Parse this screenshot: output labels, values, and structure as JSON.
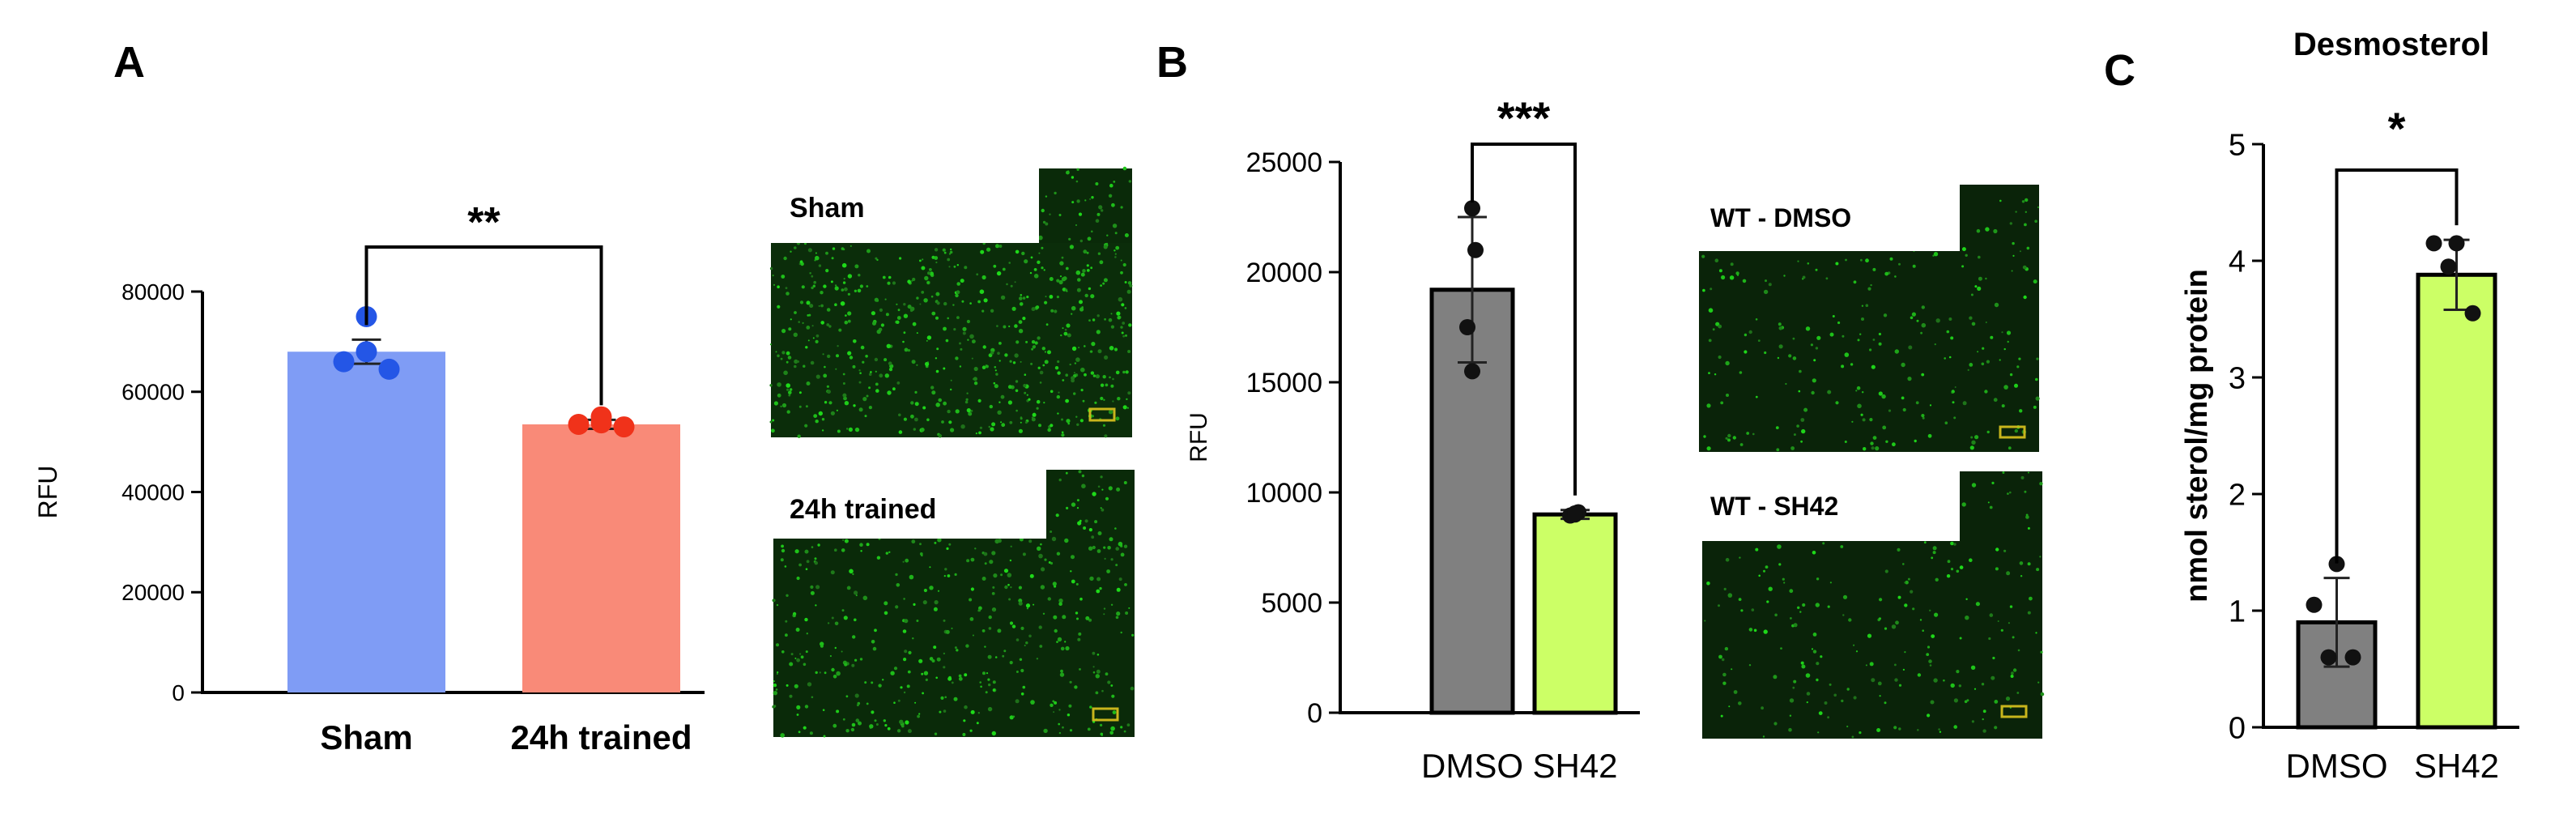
{
  "panel_letters": [
    "A",
    "B",
    "C"
  ],
  "micrographs": [
    {
      "label": "Sham"
    },
    {
      "label": "24h trained"
    },
    {
      "label": "WT - DMSO"
    },
    {
      "label": "WT - SH42"
    }
  ],
  "chart_data": [
    {
      "type": "bar",
      "panel": "A",
      "categories": [
        "Sham",
        "24h trained"
      ],
      "values": [
        68000,
        53500
      ],
      "errors": [
        2400,
        900
      ],
      "points": [
        [
          75000,
          66000,
          64500,
          68000
        ],
        [
          55000,
          53500,
          53000,
          53800
        ]
      ],
      "bar_colors": [
        "#7f9cf5",
        "#f98a78"
      ],
      "point_colors": [
        "#2456e6",
        "#f0321a"
      ],
      "ylabel": "RFU",
      "title": "",
      "ylim": [
        0,
        80000
      ],
      "yticks": [
        "0",
        "20000",
        "40000",
        "60000",
        "80000"
      ],
      "significance": "**",
      "grid": false
    },
    {
      "type": "bar",
      "panel": "B",
      "categories": [
        "DMSO",
        "SH42"
      ],
      "values": [
        19200,
        9000
      ],
      "errors": [
        3300,
        200
      ],
      "points": [
        [
          22900,
          21000,
          17500,
          15500
        ],
        [
          9000,
          9100,
          8950,
          9050
        ]
      ],
      "bar_colors": [
        "#808080",
        "#ccff66"
      ],
      "point_colors": [
        "#111111",
        "#111111"
      ],
      "ylabel": "RFU",
      "title": "",
      "ylim": [
        0,
        25000
      ],
      "yticks": [
        "0",
        "5000",
        "10000",
        "15000",
        "20000",
        "25000"
      ],
      "significance": "***",
      "grid": false
    },
    {
      "type": "bar",
      "panel": "C",
      "categories": [
        "DMSO",
        "SH42"
      ],
      "values": [
        0.9,
        3.88
      ],
      "errors": [
        0.38,
        0.3
      ],
      "points": [
        [
          1.4,
          1.05,
          0.6,
          0.6
        ],
        [
          4.15,
          4.15,
          3.95,
          3.55
        ]
      ],
      "bar_colors": [
        "#808080",
        "#ccff66"
      ],
      "point_colors": [
        "#111111",
        "#111111"
      ],
      "ylabel": "nmol sterol/mg protein",
      "title": "Desmosterol",
      "ylim": [
        0,
        5
      ],
      "yticks": [
        "0",
        "1",
        "2",
        "3",
        "4",
        "5"
      ],
      "significance": "*",
      "grid": false
    }
  ]
}
